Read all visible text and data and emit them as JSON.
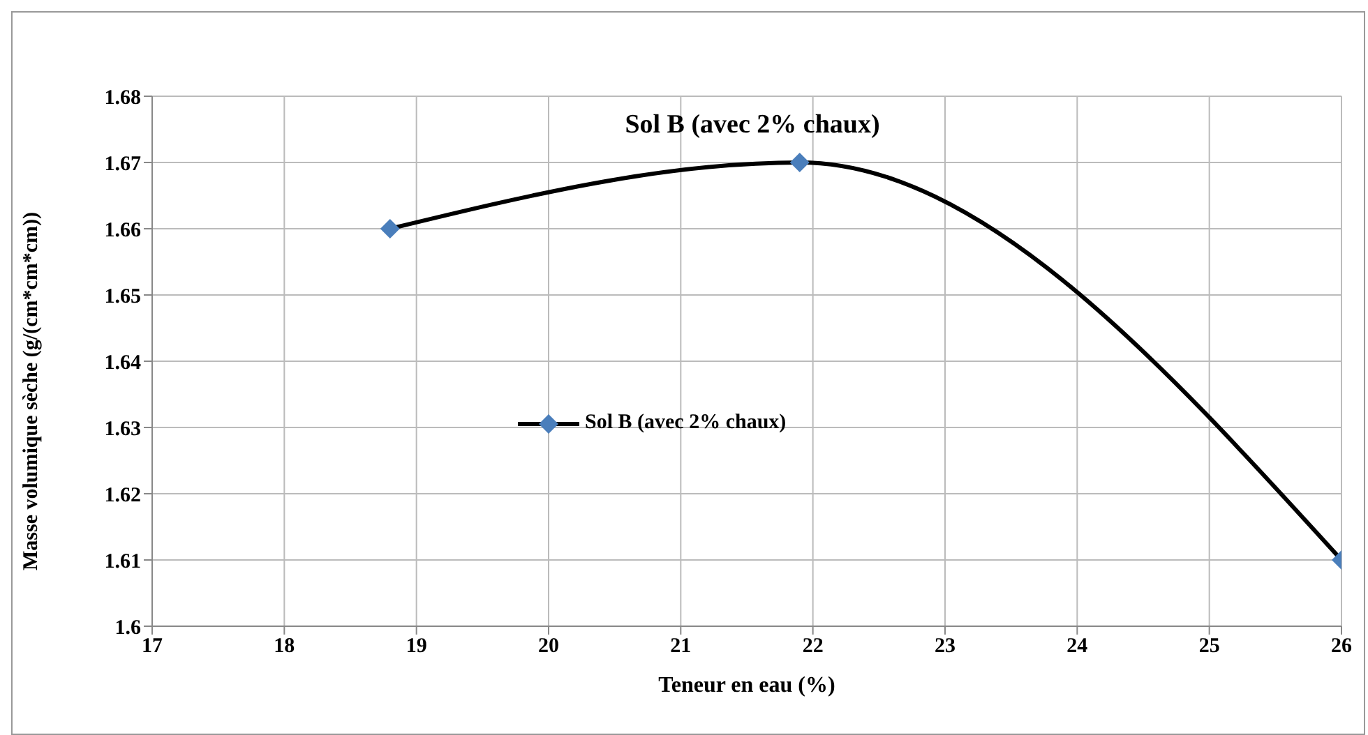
{
  "chart_data": {
    "type": "line",
    "title": "Sol B (avec 2% chaux)",
    "xlabel": "Teneur en eau (%)",
    "ylabel": "Masse volumique sèche (g/(cm*cm*cm))",
    "x": [
      18.8,
      21.9,
      26
    ],
    "series": [
      {
        "name": "Sol B (avec 2% chaux)",
        "color": "#4a7ebb",
        "values": [
          1.66,
          1.67,
          1.61
        ]
      }
    ],
    "xlim": [
      17,
      26
    ],
    "xticks": [
      17,
      18,
      19,
      20,
      21,
      22,
      23,
      24,
      25,
      26
    ],
    "ylim": [
      1.6,
      1.68
    ],
    "yticks": [
      1.6,
      1.61,
      1.62,
      1.63,
      1.64,
      1.65,
      1.66,
      1.67,
      1.68
    ],
    "grid": true,
    "legend": "left",
    "marker": "diamond",
    "line_style": "solid"
  }
}
